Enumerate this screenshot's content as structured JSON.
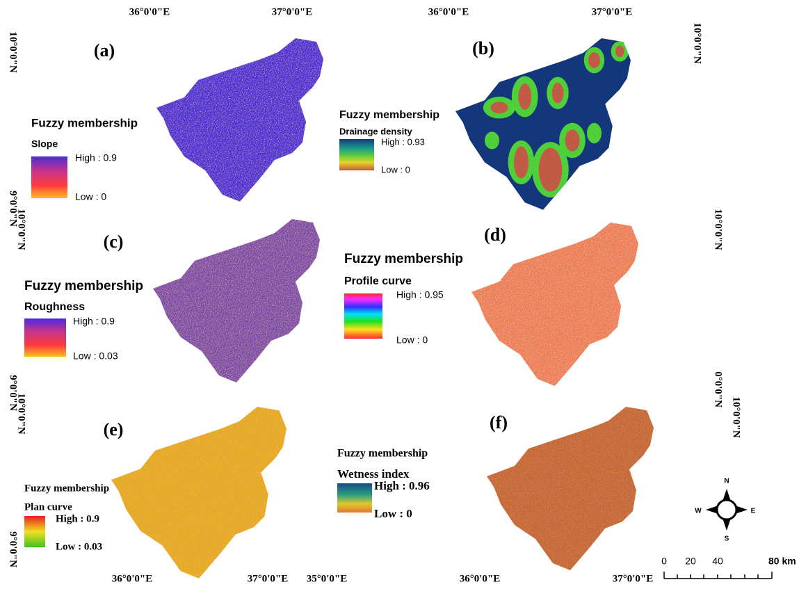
{
  "coordinates": {
    "top": [
      "36°0'0\"E",
      "37°0'0\"E",
      "36°0'0\"E",
      "37°0'0\"E"
    ],
    "bottom": [
      "36°0'0\"E",
      "37°0'0\"E",
      "35°0'0\"E",
      "36°0'0\"E",
      "37°0'0\"E"
    ],
    "left": [
      "10°0'0\"N",
      "9°0'0\"N",
      "10°0'0\"N",
      "9°0'0\"N",
      "10°0'0\"N",
      "9°0'0\"N"
    ],
    "right": [
      "10°0'0\"N",
      "10°0'0\"N",
      "0°0'0\"N",
      "10°0'0\"N"
    ]
  },
  "panels": [
    {
      "label": "(a)",
      "legend_title": "Fuzzy membership",
      "layer": "Slope",
      "high": "High : 0.9",
      "low": "Low : 0"
    },
    {
      "label": "(b)",
      "legend_title": "Fuzzy membership",
      "layer": "Drainage density",
      "high": "High : 0.93",
      "low": "Low : 0"
    },
    {
      "label": "(c)",
      "legend_title": "Fuzzy membership",
      "layer": "Roughness",
      "high": "High : 0.9",
      "low": "Low : 0.03"
    },
    {
      "label": "(d)",
      "legend_title": "Fuzzy membership",
      "layer": "Profile curve",
      "high": "High : 0.95",
      "low": "Low : 0"
    },
    {
      "label": "(e)",
      "legend_title": "Fuzzy membership",
      "layer": "Plan curve",
      "high": "High : 0.9",
      "low": "Low : 0.03"
    },
    {
      "label": "(f)",
      "legend_title": "Fuzzy membership",
      "layer": "Wetness index",
      "high": "High : 0.96",
      "low": "Low : 0"
    }
  ],
  "scale_bar": [
    "0",
    "20",
    "40",
    "80 km"
  ],
  "compass": {
    "north": "N",
    "south": "S",
    "east": "E",
    "west": "W"
  }
}
